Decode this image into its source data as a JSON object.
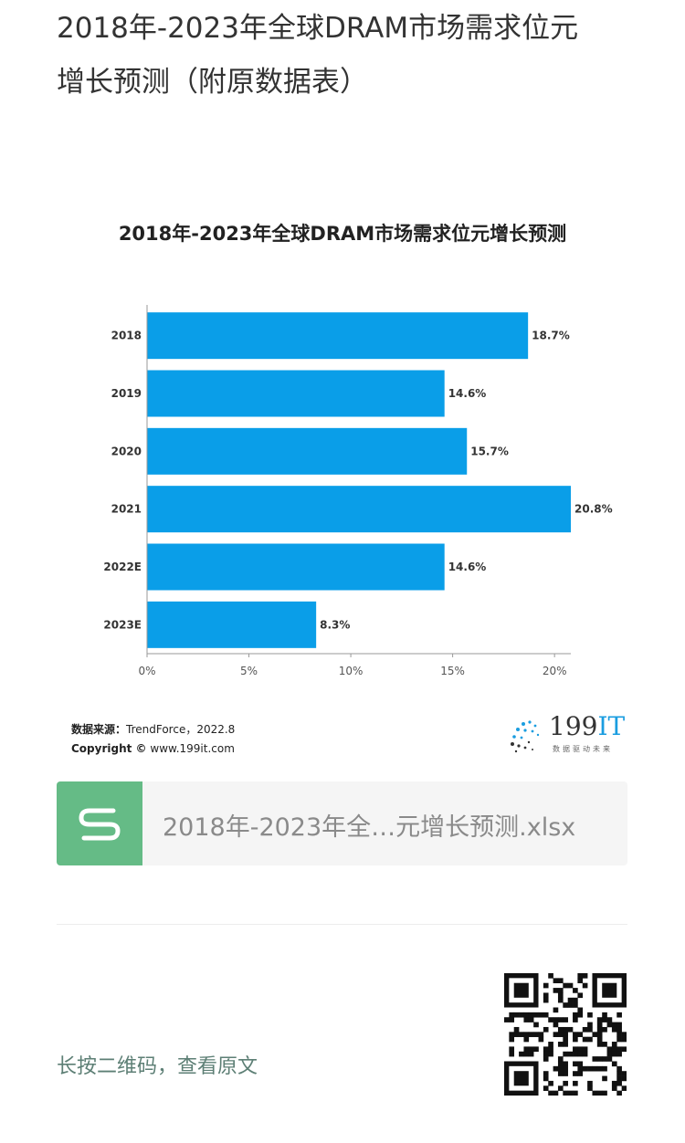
{
  "article": {
    "title_line1": "2018年-2023年全球DRAM市场需求位元",
    "title_line2": "增长预测（附原数据表）"
  },
  "chart_data": {
    "type": "bar",
    "orientation": "horizontal",
    "title": "2018年-2023年全球DRAM市场需求位元增长预测",
    "categories": [
      "2018",
      "2019",
      "2020",
      "2021",
      "2022E",
      "2023E"
    ],
    "values": [
      18.7,
      14.6,
      15.7,
      20.8,
      14.6,
      8.3
    ],
    "value_labels": [
      "18.7%",
      "14.6%",
      "15.7%",
      "20.8%",
      "14.6%",
      "8.3%"
    ],
    "xticks": [
      "0%",
      "5%",
      "10%",
      "15%",
      "20%"
    ],
    "xlim": [
      0,
      20.8
    ],
    "grid": false,
    "bar_color": "#0a9ee8"
  },
  "source": {
    "label": "数据来源：",
    "text": "TrendForce，2022.8",
    "copyright_label": "Copyright ©",
    "copyright_text": "www.199it.com"
  },
  "brand": {
    "num": "199",
    "it": "IT",
    "sub": "数据驱动未来"
  },
  "attachment": {
    "icon": "spreadsheet-icon",
    "filename": "2018年-2023年全…元增长预测.xlsx",
    "color": "#65bb86"
  },
  "qr": {
    "hint": "长按二维码，查看原文"
  }
}
